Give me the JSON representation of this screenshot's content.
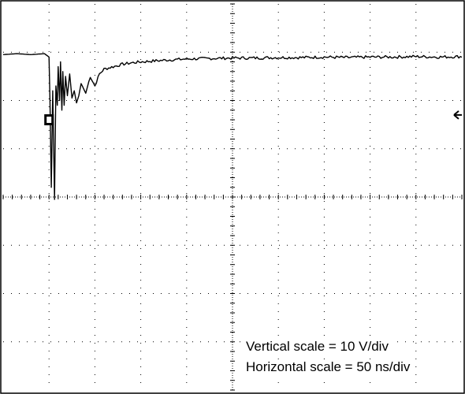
{
  "chart_data": {
    "type": "line",
    "title": "",
    "xlabel": "",
    "ylabel": "",
    "grid": true,
    "x_divisions": 10,
    "y_divisions": 8,
    "xlim": [
      0,
      10
    ],
    "ylim": [
      -4,
      4
    ],
    "x_unit": "div",
    "y_unit": "div",
    "trigger_level_div": 1.7,
    "channel_marker": {
      "x": 1.0,
      "y": 1.6,
      "color": "#000000"
    },
    "series": [
      {
        "color": "#000000",
        "x": [
          0,
          0.3,
          0.6,
          0.9,
          1.0,
          1.02,
          1.05,
          1.08,
          1.12,
          1.15,
          1.18,
          1.2,
          1.23,
          1.25,
          1.28,
          1.3,
          1.33,
          1.36,
          1.4,
          1.45,
          1.5,
          1.55,
          1.6,
          1.65,
          1.7,
          1.8,
          1.9,
          2.0,
          2.1,
          2.2,
          2.4,
          2.6,
          2.8,
          3.0,
          3.3,
          3.6,
          4.0,
          4.5,
          5.0,
          5.5,
          6.0,
          6.5,
          7.0,
          7.5,
          8.0,
          8.5,
          9.0,
          9.5,
          10.0
        ],
        "y": [
          2.95,
          2.97,
          2.95,
          2.97,
          2.9,
          2.0,
          0.2,
          2.2,
          -0.05,
          2.3,
          1.9,
          2.7,
          2.0,
          2.8,
          1.8,
          2.6,
          1.9,
          2.5,
          2.1,
          2.55,
          2.05,
          2.2,
          1.95,
          2.1,
          2.35,
          2.15,
          2.5,
          2.3,
          2.55,
          2.65,
          2.7,
          2.75,
          2.78,
          2.8,
          2.82,
          2.84,
          2.86,
          2.87,
          2.88,
          2.88,
          2.89,
          2.89,
          2.9,
          2.89,
          2.9,
          2.9,
          2.91,
          2.9,
          2.91
        ]
      }
    ],
    "annotations": [
      "Vertical scale = 10 V/div",
      "Horizontal scale = 50 ns/div"
    ]
  }
}
